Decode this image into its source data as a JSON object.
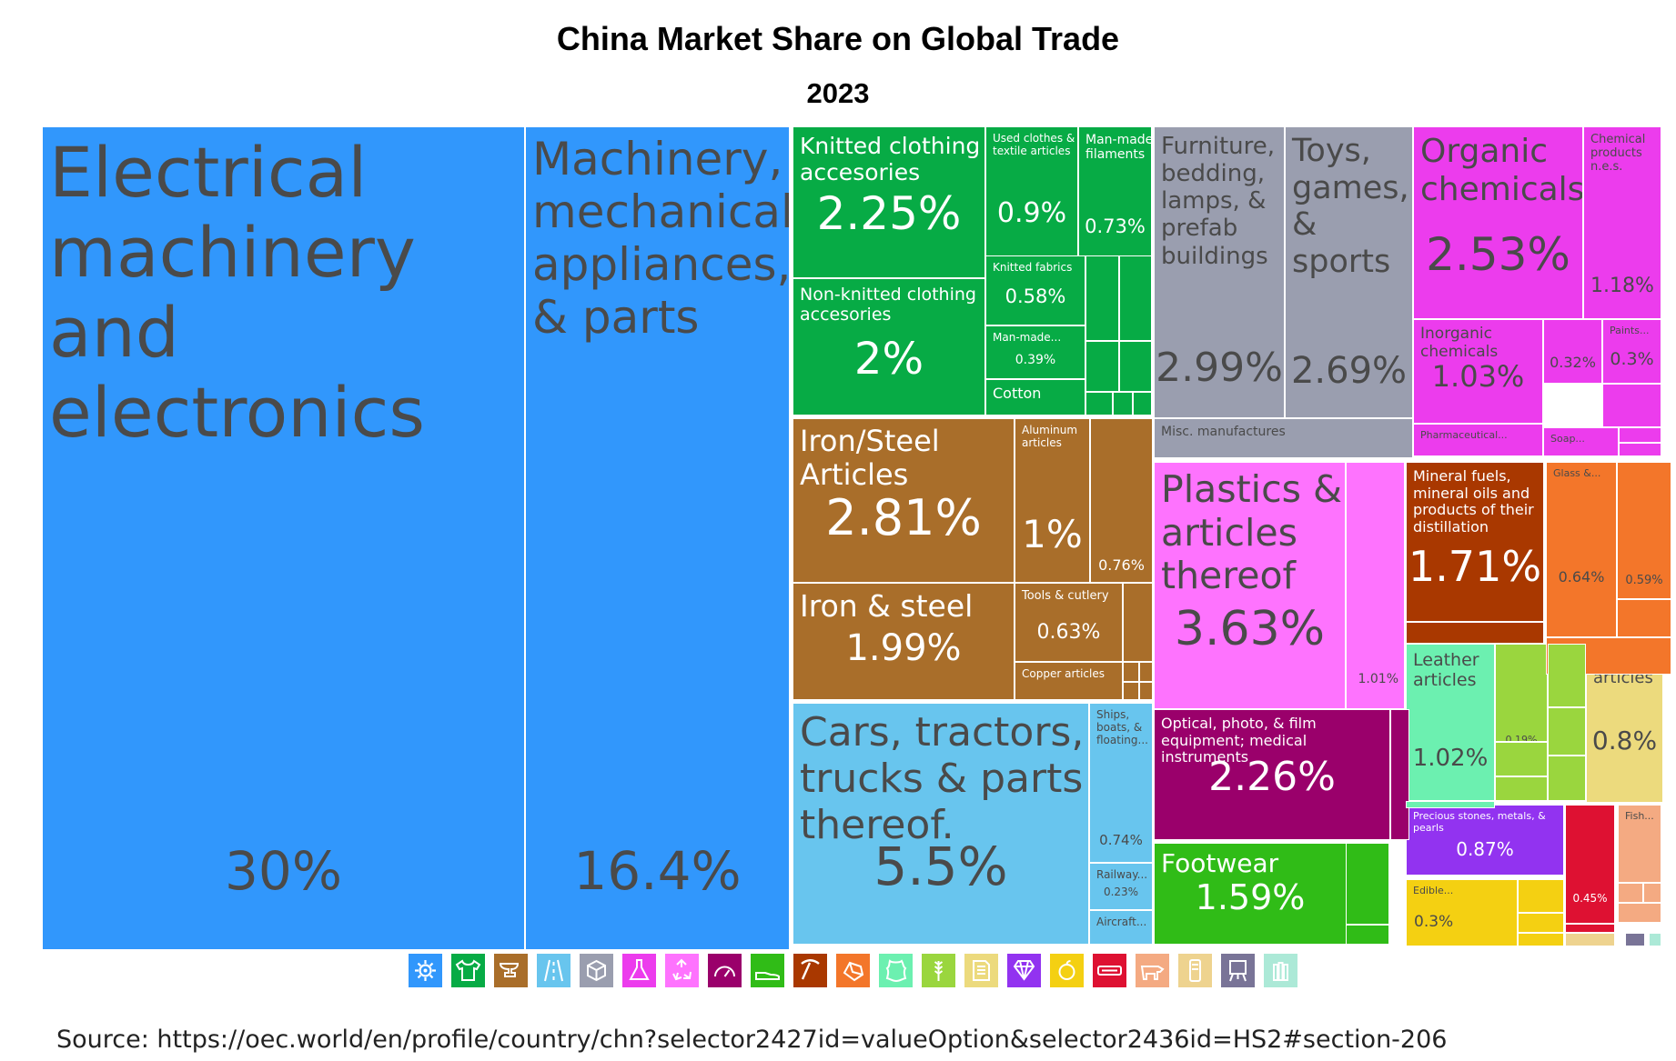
{
  "chart_data": {
    "type": "treemap",
    "title": "China Market Share on Global Trade",
    "subtitle": "2023",
    "unit": "%",
    "colors": {
      "machinery": "#3197fc",
      "textiles": "#07ab45",
      "metals": "#a96e2a",
      "transportation": "#68c5ee",
      "miscellaneous": "#9a9eaf",
      "chemical": "#ec3ced",
      "plastics": "#fe73fe",
      "instruments": "#9a006b",
      "footwear": "#30bc17",
      "mineral": "#a93800",
      "stone": "#f3762a",
      "animal_hides": "#6cf0b0",
      "vegetable": "#9ad63e",
      "paper": "#ecda7d",
      "precious": "#9233f0",
      "foodstuffs": "#f4d012",
      "weapons": "#de1132",
      "animal": "#f4aa82",
      "wood": "#eed38f",
      "arts": "#797497",
      "animal_veg": "#ace9d7"
    },
    "tiles": [
      {
        "label": "Electrical machinery and electronics",
        "value": "30%",
        "group": "machinery"
      },
      {
        "label": "Machinery, mechanical appliances, & parts",
        "value": "16.4%",
        "group": "machinery"
      },
      {
        "label": "Knitted clothing accesories",
        "value": "2.25%",
        "group": "textiles"
      },
      {
        "label": "Used clothes & textile articles",
        "value": "0.9%",
        "group": "textiles"
      },
      {
        "label": "Man-made filaments",
        "value": "0.73%",
        "group": "textiles"
      },
      {
        "label": "Non-knitted clothing accesories",
        "value": "2%",
        "group": "textiles"
      },
      {
        "label": "Knitted fabrics",
        "value": "0.58%",
        "group": "textiles"
      },
      {
        "label": "Man-made...",
        "value": "0.39%",
        "group": "textiles"
      },
      {
        "label": "Cotton",
        "value": "",
        "group": "textiles"
      },
      {
        "label": "Iron/Steel Articles",
        "value": "2.81%",
        "group": "metals"
      },
      {
        "label": "Aluminum articles",
        "value": "1%",
        "group": "metals"
      },
      {
        "label": "",
        "value": "0.76%",
        "group": "metals"
      },
      {
        "label": "Iron & steel",
        "value": "1.99%",
        "group": "metals"
      },
      {
        "label": "Tools & cutlery",
        "value": "0.63%",
        "group": "metals"
      },
      {
        "label": "Copper articles",
        "value": "",
        "group": "metals"
      },
      {
        "label": "Cars, tractors, trucks & parts thereof.",
        "value": "5.5%",
        "group": "transportation"
      },
      {
        "label": "Ships, boats, & floating...",
        "value": "0.74%",
        "group": "transportation"
      },
      {
        "label": "Railway...",
        "value": "0.23%",
        "group": "transportation"
      },
      {
        "label": "Aircraft...",
        "value": "",
        "group": "transportation"
      },
      {
        "label": "Furniture, bedding, lamps, & prefab buildings",
        "value": "2.99%",
        "group": "miscellaneous"
      },
      {
        "label": "Toys, games, & sports",
        "value": "2.69%",
        "group": "miscellaneous"
      },
      {
        "label": "Misc. manufactures",
        "value": "",
        "group": "miscellaneous"
      },
      {
        "label": "Organic chemicals",
        "value": "2.53%",
        "group": "chemical"
      },
      {
        "label": "Chemical products n.e.s.",
        "value": "1.18%",
        "group": "chemical"
      },
      {
        "label": "Inorganic chemicals",
        "value": "1.03%",
        "group": "chemical"
      },
      {
        "label": "",
        "value": "0.32%",
        "group": "chemical"
      },
      {
        "label": "Paints...",
        "value": "0.3%",
        "group": "chemical"
      },
      {
        "label": "Pharmaceutical...",
        "value": "",
        "group": "chemical"
      },
      {
        "label": "Soap...",
        "value": "",
        "group": "chemical"
      },
      {
        "label": "Plastics & articles thereof",
        "value": "3.63%",
        "group": "plastics"
      },
      {
        "label": "",
        "value": "1.01%",
        "group": "plastics"
      },
      {
        "label": "Optical, photo, & film equipment; medical instruments",
        "value": "2.26%",
        "group": "instruments"
      },
      {
        "label": "Footwear",
        "value": "1.59%",
        "group": "footwear"
      },
      {
        "label": "Mineral fuels, mineral oils and products of their distillation",
        "value": "1.71%",
        "group": "mineral"
      },
      {
        "label": "Glass &...",
        "value": "0.64%",
        "group": "stone"
      },
      {
        "label": "",
        "value": "0.59%",
        "group": "stone"
      },
      {
        "label": "Leather articles",
        "value": "1.02%",
        "group": "animal_hides"
      },
      {
        "label": "",
        "value": "0.19%",
        "group": "vegetable"
      },
      {
        "label": "Paper articles",
        "value": "0.8%",
        "group": "paper"
      },
      {
        "label": "Precious stones, metals, & pearls",
        "value": "0.87%",
        "group": "precious"
      },
      {
        "label": "Edible...",
        "value": "0.3%",
        "group": "foodstuffs"
      },
      {
        "label": "",
        "value": "0.45%",
        "group": "weapons"
      },
      {
        "label": "Fish...",
        "value": "",
        "group": "animal"
      }
    ]
  },
  "legend": [
    {
      "icon": "gear-icon",
      "group": "machinery"
    },
    {
      "icon": "shirt-icon",
      "group": "textiles"
    },
    {
      "icon": "anvil-icon",
      "group": "metals"
    },
    {
      "icon": "road-icon",
      "group": "transportation"
    },
    {
      "icon": "box-icon",
      "group": "miscellaneous"
    },
    {
      "icon": "flask-icon",
      "group": "chemical"
    },
    {
      "icon": "recycle-icon",
      "group": "plastics"
    },
    {
      "icon": "gauge-icon",
      "group": "instruments"
    },
    {
      "icon": "shoe-icon",
      "group": "footwear"
    },
    {
      "icon": "pickaxe-icon",
      "group": "mineral"
    },
    {
      "icon": "stone-icon",
      "group": "stone"
    },
    {
      "icon": "hide-icon",
      "group": "animal_hides"
    },
    {
      "icon": "wheat-icon",
      "group": "vegetable"
    },
    {
      "icon": "document-icon",
      "group": "paper"
    },
    {
      "icon": "diamond-icon",
      "group": "precious"
    },
    {
      "icon": "fruit-icon",
      "group": "foodstuffs"
    },
    {
      "icon": "weapon-icon",
      "group": "weapons"
    },
    {
      "icon": "cow-icon",
      "group": "animal"
    },
    {
      "icon": "wood-icon",
      "group": "wood"
    },
    {
      "icon": "easel-icon",
      "group": "arts"
    },
    {
      "icon": "bottles-icon",
      "group": "animal_veg"
    }
  ],
  "source": "Source: https://oec.world/en/profile/country/chn?selector2427id=valueOption&selector2436id=HS2#section-206"
}
